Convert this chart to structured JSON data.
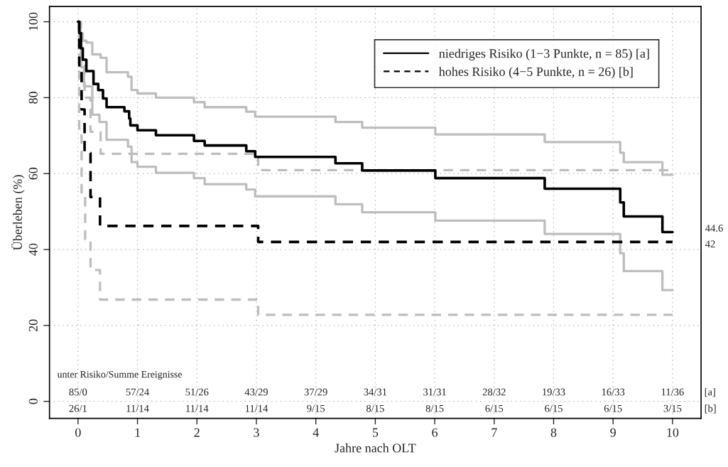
{
  "chart_data": {
    "type": "step",
    "xlabel": "Jahre nach OLT",
    "ylabel": "Überleben (%)",
    "xlim": [
      -0.48,
      10.48
    ],
    "ylim": [
      -4.5,
      104
    ],
    "xticks": [
      0,
      1,
      2,
      3,
      4,
      5,
      6,
      7,
      8,
      9,
      10
    ],
    "yticks": [
      0,
      20,
      40,
      60,
      80,
      100
    ],
    "grid": true,
    "legend": "top right",
    "series": [
      {
        "color": "#bebebe",
        "line_style": "solid",
        "x": [
          0,
          0.04,
          0.08,
          0.14,
          0.24,
          0.38,
          0.48,
          0.84,
          0.9,
          1.0,
          1.31,
          1.95,
          2.13,
          2.83,
          2.98,
          4.33,
          4.78,
          6.01,
          7.85,
          9.12,
          9.18,
          9.83,
          10.0
        ],
        "values": [
          100,
          97,
          95,
          94.5,
          91.4,
          90.5,
          86.7,
          85.5,
          82.0,
          81.1,
          80.0,
          78.8,
          77.5,
          76.3,
          75.0,
          73.6,
          72.1,
          70.3,
          68.3,
          65.5,
          63.0,
          59.7,
          59.7
        ]
      },
      {
        "color": "#bebebe",
        "line_style": "solid",
        "x": [
          0,
          0.02,
          0.05,
          0.1,
          0.24,
          0.36,
          0.48,
          0.84,
          0.9,
          1.0,
          1.31,
          1.95,
          2.13,
          2.83,
          2.98,
          4.33,
          4.78,
          6.01,
          7.85,
          9.12,
          9.18,
          9.83,
          10.0
        ],
        "values": [
          100,
          93,
          88,
          83,
          75.5,
          73.6,
          68.9,
          67.1,
          63.0,
          61.8,
          60.2,
          58.8,
          57.2,
          55.8,
          54.0,
          51.9,
          49.8,
          47.6,
          44.1,
          39.0,
          34.3,
          29.3,
          29.3
        ]
      },
      {
        "color": "#bebebe",
        "line_style": "dashed",
        "x": [
          0,
          0.05,
          0.11,
          0.21,
          0.38,
          3.03,
          10.0
        ],
        "values": [
          100,
          90,
          80,
          71,
          65.2,
          60.9,
          60.9
        ]
      },
      {
        "color": "#bebebe",
        "line_style": "dashed",
        "x": [
          0,
          0.02,
          0.06,
          0.12,
          0.21,
          0.37,
          3.03,
          10.0
        ],
        "values": [
          100,
          70,
          55,
          42.7,
          34.6,
          26.8,
          22.8,
          22.8
        ]
      },
      {
        "name": "niedriges Risiko (1−3 Punkte, n = 85) [a]",
        "color": "#000000",
        "line_style": "solid",
        "x": [
          0,
          0.02,
          0.05,
          0.08,
          0.14,
          0.26,
          0.34,
          0.42,
          0.48,
          0.78,
          0.86,
          0.88,
          1.0,
          1.31,
          1.95,
          2.13,
          2.83,
          2.98,
          4.33,
          4.78,
          6.01,
          7.85,
          9.12,
          9.18,
          9.83,
          10.0
        ],
        "values": [
          100,
          97,
          93,
          90,
          87,
          83.6,
          82.0,
          79.8,
          77.5,
          76.4,
          74.5,
          72.7,
          71.4,
          70.1,
          68.6,
          67.4,
          65.9,
          64.4,
          62.7,
          60.8,
          58.8,
          56.0,
          52.4,
          48.7,
          44.6,
          44.6
        ]
      },
      {
        "name": "hohes Risiko (4−5 Punkte, n = 26) [b]",
        "color": "#000000",
        "line_style": "dashed",
        "x": [
          0,
          0.02,
          0.06,
          0.11,
          0.21,
          0.37,
          3.03,
          10.0
        ],
        "values": [
          100,
          88.5,
          76.9,
          65.4,
          53.8,
          46.2,
          42.0,
          42.0
        ]
      }
    ],
    "annotations": [
      "unter Risiko/Summe Ereignisse",
      "85/0",
      "57/24",
      "51/26",
      "43/29",
      "37/29",
      "34/31",
      "31/31",
      "28/32",
      "19/33",
      "16/33",
      "11/36",
      "[a]",
      "26/1",
      "11/14",
      "11/14",
      "11/14",
      "9/15",
      "8/15",
      "8/15",
      "6/15",
      "6/15",
      "6/15",
      "3/15",
      "[b]",
      "44.6",
      "42"
    ]
  }
}
